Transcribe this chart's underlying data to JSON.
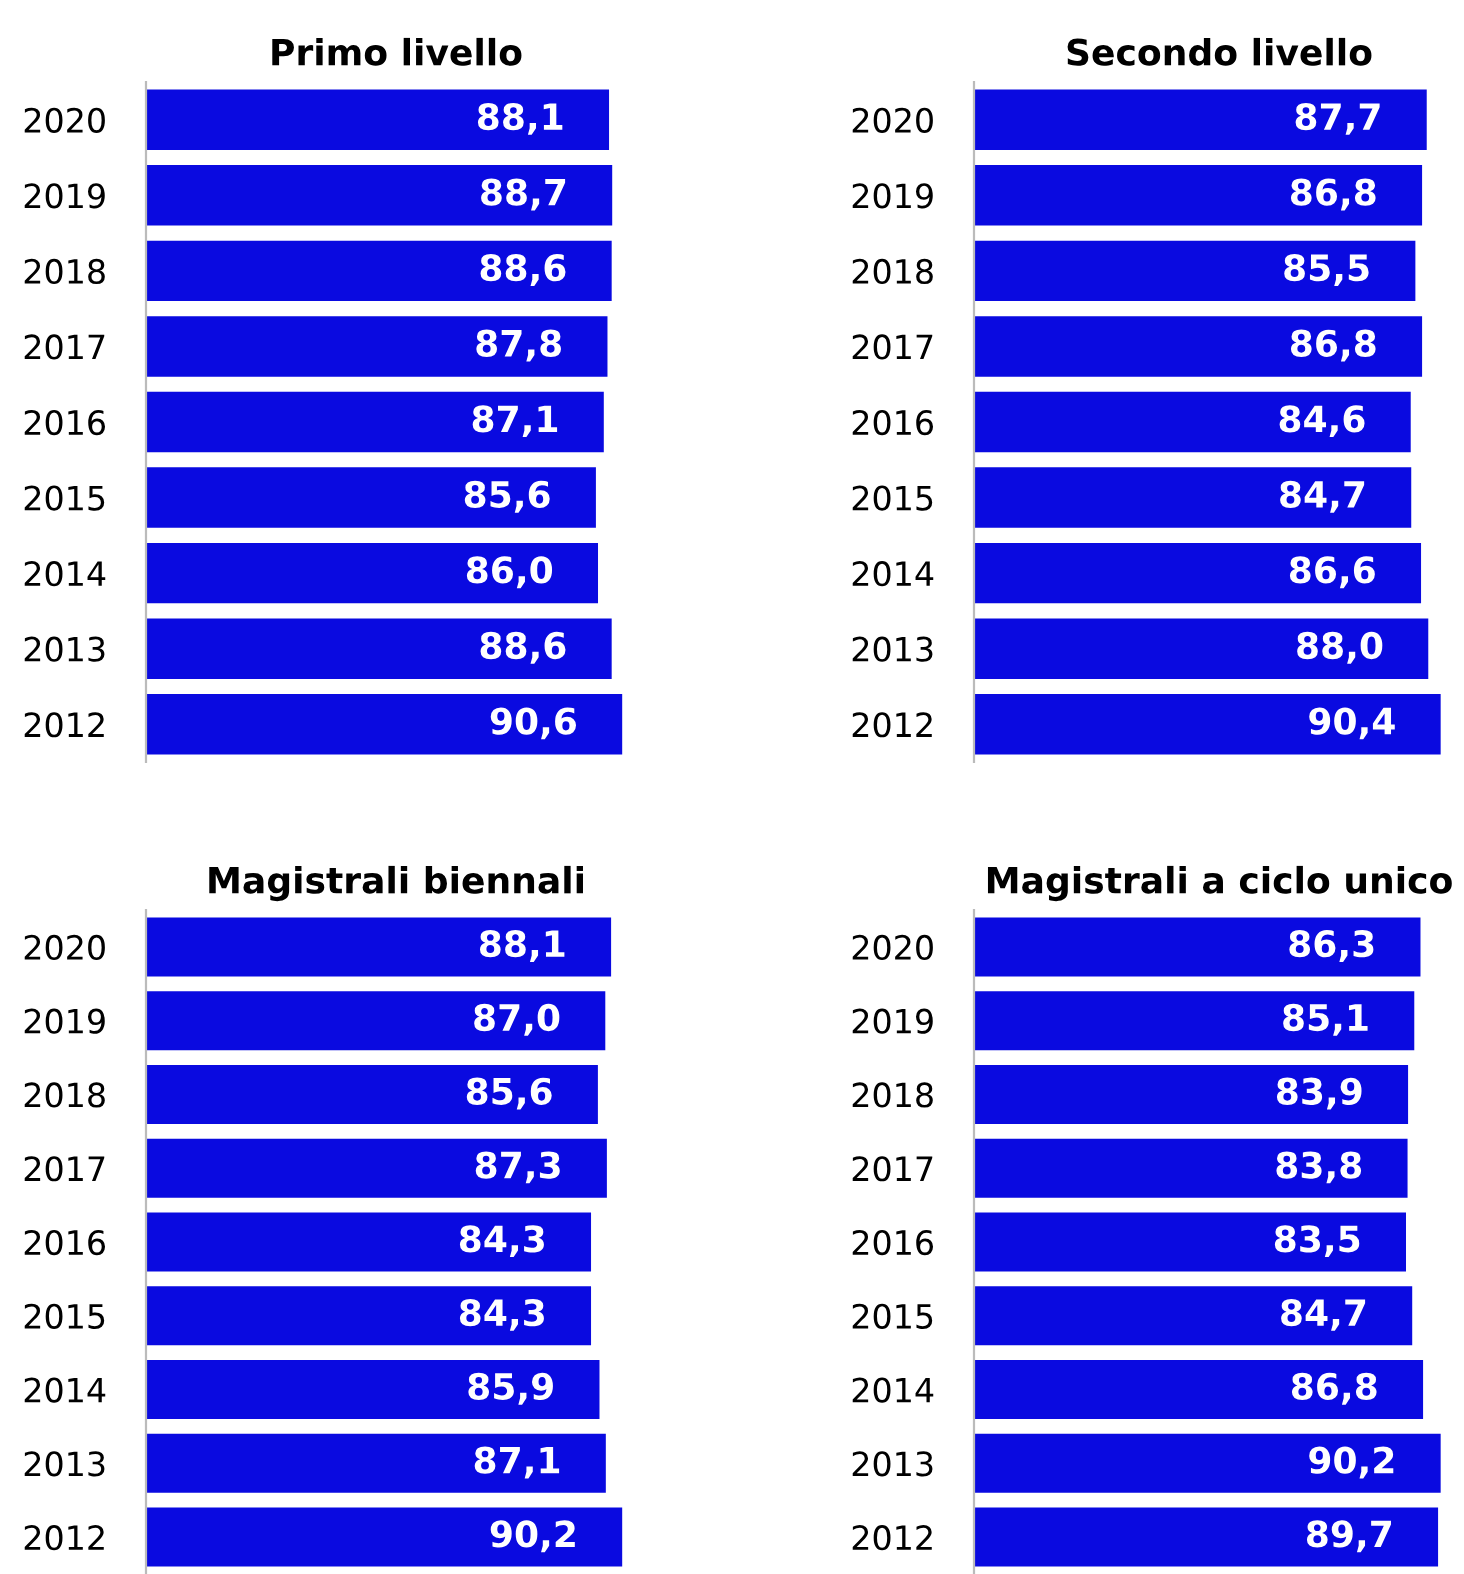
{
  "chart_data": [
    {
      "type": "bar",
      "orientation": "horizontal",
      "title": "Primo livello",
      "categories": [
        "2020",
        "2019",
        "2018",
        "2017",
        "2016",
        "2015",
        "2014",
        "2013",
        "2012"
      ],
      "tick_labels": "y",
      "grid": false,
      "legend": false,
      "values": [
        88.1,
        88.7,
        88.6,
        87.8,
        87.1,
        85.6,
        86.0,
        88.6,
        90.6
      ],
      "value_labels": [
        "88,1",
        "88,7",
        "88,6",
        "87,8",
        "87,1",
        "85,6",
        "86,0",
        "88,6",
        "90,6"
      ],
      "color": "#0a0ae0"
    },
    {
      "type": "bar",
      "orientation": "horizontal",
      "title": "Secondo livello",
      "categories": [
        "2020",
        "2019",
        "2018",
        "2017",
        "2016",
        "2015",
        "2014",
        "2013",
        "2012"
      ],
      "tick_labels": "y",
      "grid": false,
      "legend": false,
      "values": [
        87.7,
        86.8,
        85.5,
        86.8,
        84.6,
        84.7,
        86.6,
        88.0,
        90.4
      ],
      "value_labels": [
        "87,7",
        "86,8",
        "85,5",
        "86,8",
        "84,6",
        "84,7",
        "86,6",
        "88,0",
        "90,4"
      ],
      "color": "#0a0ae0"
    },
    {
      "type": "bar",
      "orientation": "horizontal",
      "title": "Magistrali biennali",
      "categories": [
        "2020",
        "2019",
        "2018",
        "2017",
        "2016",
        "2015",
        "2014",
        "2013",
        "2012"
      ],
      "tick_labels": "y",
      "grid": false,
      "legend": false,
      "values": [
        88.1,
        87.0,
        85.6,
        87.3,
        84.3,
        84.3,
        85.9,
        87.1,
        90.2
      ],
      "value_labels": [
        "88,1",
        "87,0",
        "85,6",
        "87,3",
        "84,3",
        "84,3",
        "85,9",
        "87,1",
        "90,2"
      ],
      "color": "#0a0ae0"
    },
    {
      "type": "bar",
      "orientation": "horizontal",
      "title": "Magistrali a ciclo unico",
      "categories": [
        "2020",
        "2019",
        "2018",
        "2017",
        "2016",
        "2015",
        "2014",
        "2013",
        "2012"
      ],
      "tick_labels": "y",
      "grid": false,
      "legend": false,
      "values": [
        86.3,
        85.1,
        83.9,
        83.8,
        83.5,
        84.7,
        86.8,
        90.2,
        89.7
      ],
      "value_labels": [
        "86,3",
        "85,1",
        "83,9",
        "83,8",
        "83,5",
        "84,7",
        "86,8",
        "90,2",
        "89,7"
      ],
      "color": "#0a0ae0"
    }
  ]
}
